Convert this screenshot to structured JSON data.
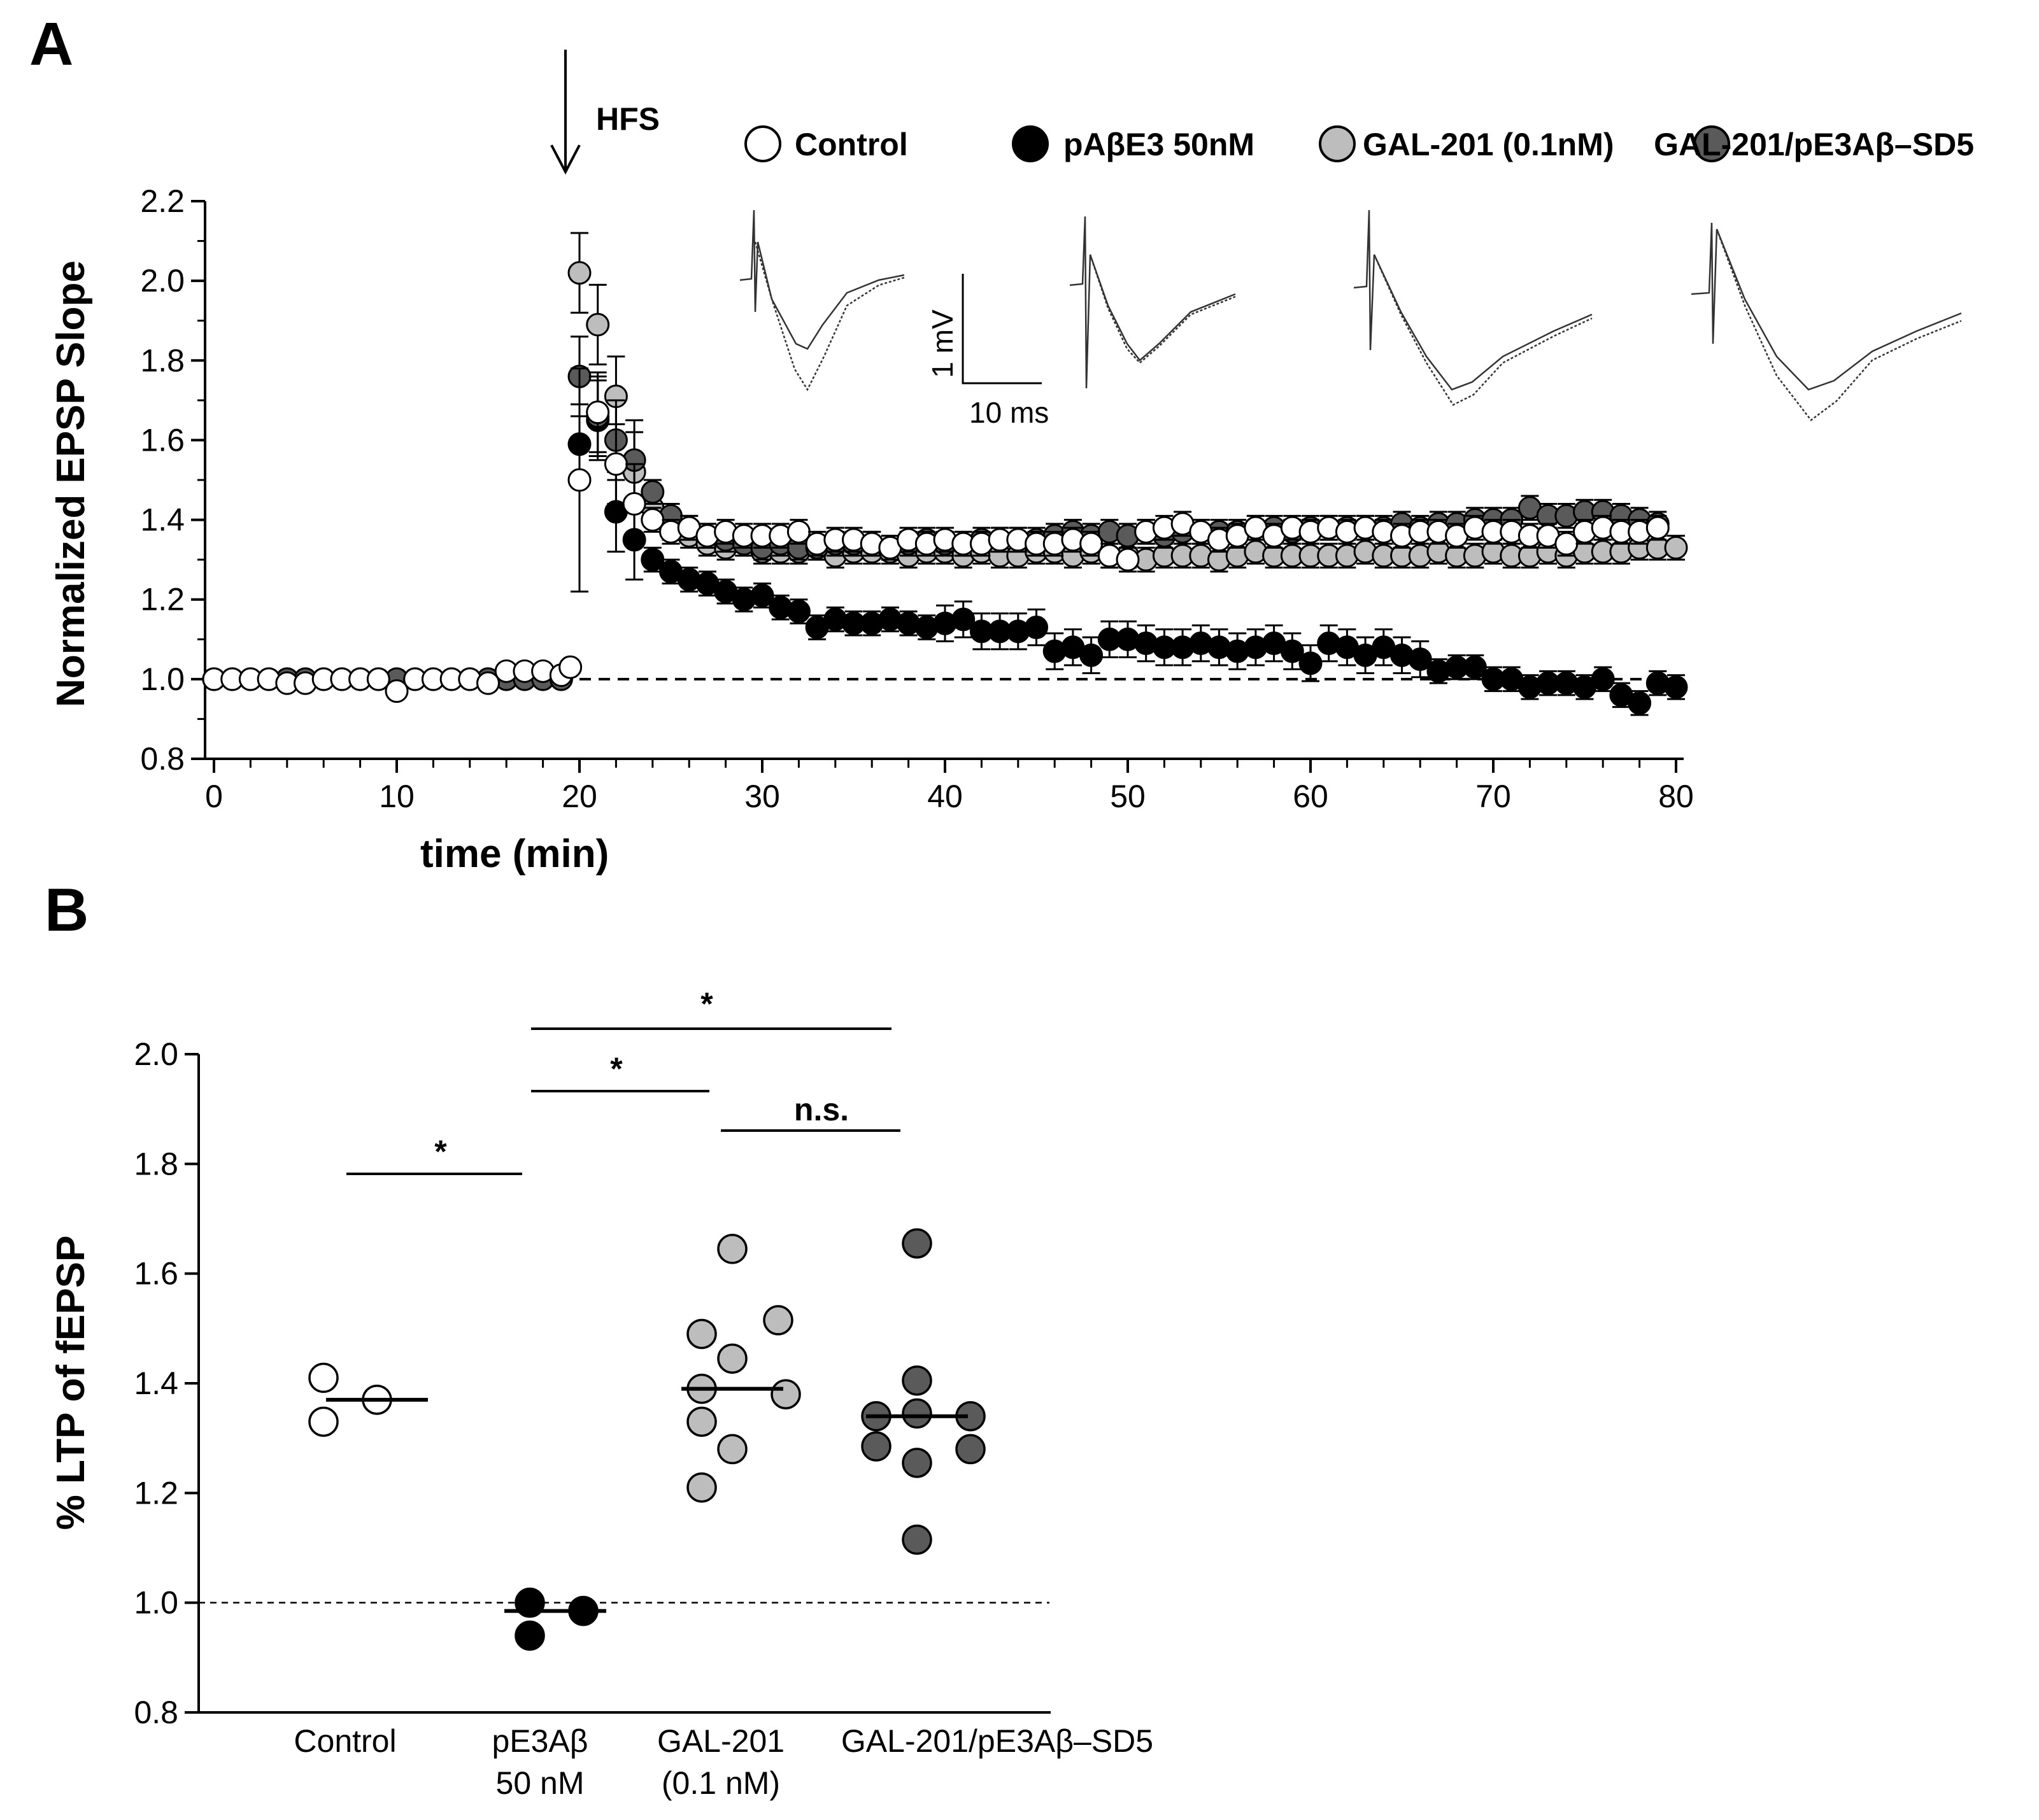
{
  "panels": {
    "a": "A",
    "b": "B"
  },
  "chart_data": [
    {
      "type": "scatter",
      "panel": "A",
      "xlabel": "time (min)",
      "ylabel": "Normalized EPSP Slope",
      "xlim": [
        0,
        80
      ],
      "ylim": [
        0.8,
        2.2
      ],
      "xticks": [
        "0",
        "10",
        "20",
        "30",
        "40",
        "50",
        "60",
        "70",
        "80"
      ],
      "yticks": [
        "0.8",
        "1.0",
        "1.2",
        "1.4",
        "1.6",
        "1.8",
        "2.0",
        "2.2"
      ],
      "baseline": 1.0,
      "annotation": "HFS",
      "hfs_time": 19.2,
      "scale_bar": {
        "v_label": "1 mV",
        "h_label": "10 ms"
      },
      "series": [
        {
          "name": "Control",
          "color": "#ffffff",
          "x": [
            0,
            1,
            2,
            3,
            4,
            5,
            6,
            7,
            8,
            9,
            10,
            11,
            12,
            13,
            14,
            15,
            16,
            17,
            18,
            19,
            19.5,
            20,
            21,
            22,
            23,
            24,
            25,
            26,
            27,
            28,
            29,
            30,
            31,
            32,
            33,
            34,
            35,
            36,
            37,
            38,
            39,
            40,
            41,
            42,
            43,
            44,
            45,
            46,
            47,
            48,
            49,
            50,
            51,
            52,
            53,
            54,
            55,
            56,
            57,
            58,
            59,
            60,
            61,
            62,
            63,
            64,
            65,
            66,
            67,
            68,
            69,
            70,
            71,
            72,
            73,
            74,
            75,
            76,
            77,
            78,
            79
          ],
          "y": [
            1.0,
            1.0,
            1.0,
            1.0,
            0.99,
            0.99,
            1.0,
            1.0,
            1.0,
            1.0,
            0.97,
            1.0,
            1.0,
            1.0,
            1.0,
            0.99,
            1.02,
            1.02,
            1.02,
            1.01,
            1.03,
            1.5,
            1.67,
            1.54,
            1.44,
            1.4,
            1.37,
            1.38,
            1.36,
            1.37,
            1.36,
            1.36,
            1.36,
            1.37,
            1.34,
            1.35,
            1.35,
            1.34,
            1.33,
            1.35,
            1.34,
            1.35,
            1.34,
            1.34,
            1.35,
            1.35,
            1.34,
            1.34,
            1.35,
            1.34,
            1.31,
            1.3,
            1.37,
            1.38,
            1.39,
            1.37,
            1.35,
            1.36,
            1.38,
            1.36,
            1.38,
            1.37,
            1.38,
            1.37,
            1.38,
            1.37,
            1.36,
            1.37,
            1.37,
            1.36,
            1.38,
            1.37,
            1.37,
            1.36,
            1.36,
            1.34,
            1.37,
            1.38,
            1.37,
            1.37,
            1.38
          ]
        },
        {
          "name": "pAβE3 50nM",
          "color": "#000000",
          "x": [
            0,
            1,
            2,
            3,
            4,
            5,
            6,
            7,
            8,
            9,
            10,
            11,
            12,
            13,
            14,
            15,
            16,
            17,
            18,
            19,
            20,
            21,
            22,
            23,
            24,
            25,
            26,
            27,
            28,
            29,
            30,
            31,
            32,
            33,
            34,
            35,
            36,
            37,
            38,
            39,
            40,
            41,
            42,
            43,
            44,
            45,
            46,
            47,
            48,
            49,
            50,
            51,
            52,
            53,
            54,
            55,
            56,
            57,
            58,
            59,
            60,
            61,
            62,
            63,
            64,
            65,
            66,
            67,
            68,
            69,
            70,
            71,
            72,
            73,
            74,
            75,
            76,
            77,
            78,
            79,
            80
          ],
          "y": [
            1.0,
            1.0,
            1.0,
            1.0,
            1.0,
            1.0,
            1.0,
            1.0,
            1.0,
            1.0,
            1.0,
            1.0,
            1.0,
            1.0,
            1.0,
            1.0,
            1.0,
            1.0,
            1.0,
            1.0,
            1.59,
            1.65,
            1.42,
            1.35,
            1.3,
            1.27,
            1.25,
            1.24,
            1.22,
            1.2,
            1.21,
            1.18,
            1.17,
            1.13,
            1.15,
            1.14,
            1.14,
            1.15,
            1.14,
            1.13,
            1.14,
            1.15,
            1.12,
            1.12,
            1.12,
            1.13,
            1.07,
            1.08,
            1.06,
            1.1,
            1.1,
            1.09,
            1.08,
            1.08,
            1.09,
            1.08,
            1.07,
            1.08,
            1.09,
            1.07,
            1.04,
            1.09,
            1.08,
            1.06,
            1.08,
            1.06,
            1.05,
            1.02,
            1.03,
            1.03,
            1.0,
            1.0,
            0.98,
            0.99,
            0.99,
            0.98,
            1.0,
            0.96,
            0.94,
            0.99,
            0.98
          ]
        },
        {
          "name": "GAL-201 (0.1nM)",
          "color": "#bdbdbd",
          "x": [
            0,
            1,
            2,
            3,
            4,
            5,
            6,
            7,
            8,
            9,
            10,
            11,
            12,
            13,
            14,
            15,
            16,
            17,
            18,
            19,
            20,
            21,
            22,
            23,
            24,
            25,
            26,
            27,
            28,
            29,
            30,
            31,
            32,
            33,
            34,
            35,
            36,
            37,
            38,
            39,
            40,
            41,
            42,
            43,
            44,
            45,
            46,
            47,
            48,
            49,
            50,
            51,
            52,
            53,
            54,
            55,
            56,
            57,
            58,
            59,
            60,
            61,
            62,
            63,
            64,
            65,
            66,
            67,
            68,
            69,
            70,
            71,
            72,
            73,
            74,
            75,
            76,
            77,
            78,
            79,
            80
          ],
          "y": [
            1.0,
            1.0,
            1.0,
            1.0,
            1.0,
            1.0,
            1.0,
            1.0,
            1.0,
            1.0,
            1.0,
            1.0,
            1.0,
            1.0,
            1.0,
            1.0,
            1.0,
            1.0,
            1.0,
            1.0,
            2.02,
            1.89,
            1.71,
            1.52,
            1.43,
            1.38,
            1.36,
            1.34,
            1.33,
            1.34,
            1.32,
            1.32,
            1.32,
            1.33,
            1.31,
            1.32,
            1.32,
            1.32,
            1.31,
            1.32,
            1.32,
            1.31,
            1.32,
            1.31,
            1.31,
            1.32,
            1.32,
            1.31,
            1.32,
            1.31,
            1.31,
            1.3,
            1.31,
            1.31,
            1.31,
            1.3,
            1.31,
            1.32,
            1.31,
            1.31,
            1.31,
            1.31,
            1.31,
            1.32,
            1.31,
            1.31,
            1.31,
            1.32,
            1.31,
            1.31,
            1.32,
            1.31,
            1.31,
            1.32,
            1.31,
            1.32,
            1.32,
            1.32,
            1.33,
            1.33,
            1.33
          ]
        },
        {
          "name": "GAL-201/pE3Aβ–SD5",
          "color": "#5a5a5a",
          "x": [
            0,
            1,
            2,
            3,
            4,
            5,
            6,
            7,
            8,
            9,
            10,
            11,
            12,
            13,
            14,
            15,
            16,
            17,
            18,
            19,
            20,
            21,
            22,
            23,
            24,
            25,
            26,
            27,
            28,
            29,
            30,
            31,
            32,
            33,
            34,
            35,
            36,
            37,
            38,
            39,
            40,
            41,
            42,
            43,
            44,
            45,
            46,
            47,
            48,
            49,
            50,
            51,
            52,
            53,
            54,
            55,
            56,
            57,
            58,
            59,
            60,
            61,
            62,
            63,
            64,
            65,
            66,
            67,
            68,
            69,
            70,
            71,
            72,
            73,
            74,
            75,
            76,
            77,
            78,
            79
          ],
          "y": [
            1.0,
            1.0,
            1.0,
            1.0,
            1.0,
            1.0,
            1.0,
            1.0,
            1.0,
            1.0,
            1.0,
            1.0,
            1.0,
            1.0,
            1.0,
            1.0,
            1.0,
            1.0,
            1.0,
            1.0,
            1.76,
            1.66,
            1.6,
            1.55,
            1.47,
            1.41,
            1.38,
            1.36,
            1.35,
            1.34,
            1.33,
            1.34,
            1.33,
            1.33,
            1.34,
            1.34,
            1.34,
            1.33,
            1.34,
            1.35,
            1.34,
            1.34,
            1.35,
            1.35,
            1.35,
            1.35,
            1.36,
            1.37,
            1.36,
            1.37,
            1.36,
            1.37,
            1.36,
            1.37,
            1.37,
            1.37,
            1.37,
            1.38,
            1.38,
            1.37,
            1.38,
            1.38,
            1.38,
            1.38,
            1.38,
            1.39,
            1.38,
            1.39,
            1.39,
            1.4,
            1.4,
            1.4,
            1.43,
            1.41,
            1.41,
            1.42,
            1.42,
            1.41,
            1.4,
            1.39
          ]
        }
      ]
    },
    {
      "type": "scatter",
      "panel": "B",
      "ylabel": "% LTP of  fEPSP",
      "ylim": [
        0.8,
        2.0
      ],
      "yticks": [
        "0.8",
        "1.0",
        "1.2",
        "1.4",
        "1.6",
        "1.8",
        "2.0"
      ],
      "baseline": 1.0,
      "categories": [
        {
          "name": "Control",
          "line1": "Control",
          "line2": "",
          "color": "#ffffff",
          "median": 1.37,
          "values": [
            1.41,
            1.33,
            1.37
          ]
        },
        {
          "name": "pE3Aβ 50 nM",
          "line1": "pE3Aβ",
          "line2": "50 nM",
          "color": "#000000",
          "median": 0.985,
          "values": [
            1.0,
            0.94,
            0.985
          ]
        },
        {
          "name": "GAL-201 (0.1 nM)",
          "line1": "GAL-201",
          "line2": "(0.1 nM)",
          "color": "#bdbdbd",
          "median": 1.39,
          "values": [
            1.645,
            1.49,
            1.515,
            1.39,
            1.445,
            1.38,
            1.33,
            1.28,
            1.21
          ]
        },
        {
          "name": "GAL-201/pE3Aβ–SD5",
          "line1": "GAL-201/pE3Aβ–SD5",
          "line2": "",
          "color": "#5a5a5a",
          "median": 1.34,
          "values": [
            1.655,
            1.405,
            1.34,
            1.345,
            1.34,
            1.285,
            1.28,
            1.255,
            1.115
          ]
        }
      ],
      "significance": [
        {
          "label": "*",
          "from": "Control",
          "to": "pE3Aβ 50 nM"
        },
        {
          "label": "*",
          "from": "pE3Aβ 50 nM",
          "to": "GAL-201 (0.1 nM)"
        },
        {
          "label": "*",
          "from": "pE3Aβ 50 nM",
          "to": "GAL-201/pE3Aβ–SD5"
        },
        {
          "label": "n.s.",
          "from": "GAL-201 (0.1 nM)",
          "to": "GAL-201/pE3Aβ–SD5"
        }
      ]
    }
  ]
}
